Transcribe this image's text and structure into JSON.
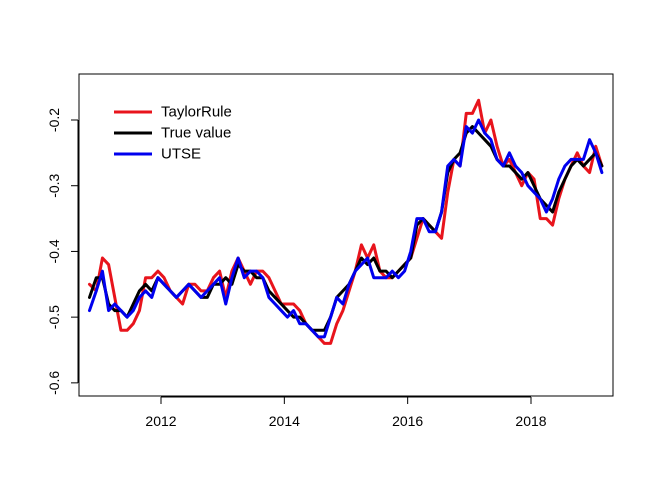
{
  "chart_data": {
    "type": "line",
    "title": "",
    "xlabel": "",
    "ylabel": "",
    "xlim": [
      2010.67,
      2019.33
    ],
    "ylim": [
      -0.62,
      -0.13
    ],
    "x_ticks": [
      2012,
      2014,
      2016,
      2018
    ],
    "y_ticks": [
      -0.6,
      -0.5,
      -0.4,
      -0.3,
      -0.2
    ],
    "y_tick_labels": [
      "-0.6",
      "-0.5",
      "-0.4",
      "-0.3",
      "-0.2"
    ],
    "legend_position": "top-left",
    "grid": false,
    "series": [
      {
        "name": "TaylorRule",
        "color": "#e8141c",
        "x": [
          2010.84,
          2010.95,
          2011.05,
          2011.15,
          2011.25,
          2011.35,
          2011.45,
          2011.55,
          2011.65,
          2011.75,
          2011.85,
          2011.95,
          2012.05,
          2012.15,
          2012.25,
          2012.35,
          2012.45,
          2012.55,
          2012.65,
          2012.75,
          2012.85,
          2012.95,
          2013.05,
          2013.15,
          2013.25,
          2013.35,
          2013.45,
          2013.55,
          2013.65,
          2013.75,
          2013.85,
          2013.95,
          2014.05,
          2014.15,
          2014.25,
          2014.35,
          2014.45,
          2014.55,
          2014.65,
          2014.75,
          2014.85,
          2014.95,
          2015.05,
          2015.15,
          2015.25,
          2015.35,
          2015.45,
          2015.55,
          2015.65,
          2015.75,
          2015.85,
          2015.95,
          2016.05,
          2016.15,
          2016.25,
          2016.35,
          2016.45,
          2016.55,
          2016.65,
          2016.75,
          2016.85,
          2016.95,
          2017.05,
          2017.15,
          2017.25,
          2017.35,
          2017.45,
          2017.55,
          2017.65,
          2017.75,
          2017.85,
          2017.95,
          2018.05,
          2018.15,
          2018.25,
          2018.35,
          2018.45,
          2018.55,
          2018.65,
          2018.75,
          2018.85,
          2018.95,
          2019.05,
          2019.15
        ],
        "y": [
          -0.45,
          -0.46,
          -0.41,
          -0.42,
          -0.47,
          -0.52,
          -0.52,
          -0.51,
          -0.49,
          -0.44,
          -0.44,
          -0.43,
          -0.44,
          -0.46,
          -0.47,
          -0.48,
          -0.45,
          -0.45,
          -0.46,
          -0.46,
          -0.44,
          -0.43,
          -0.47,
          -0.43,
          -0.41,
          -0.43,
          -0.45,
          -0.43,
          -0.43,
          -0.44,
          -0.46,
          -0.48,
          -0.48,
          -0.48,
          -0.49,
          -0.51,
          -0.52,
          -0.53,
          -0.54,
          -0.54,
          -0.51,
          -0.49,
          -0.46,
          -0.43,
          -0.39,
          -0.41,
          -0.39,
          -0.43,
          -0.44,
          -0.44,
          -0.43,
          -0.42,
          -0.41,
          -0.38,
          -0.35,
          -0.36,
          -0.37,
          -0.38,
          -0.31,
          -0.26,
          -0.27,
          -0.19,
          -0.19,
          -0.17,
          -0.22,
          -0.2,
          -0.24,
          -0.27,
          -0.26,
          -0.28,
          -0.3,
          -0.28,
          -0.29,
          -0.35,
          -0.35,
          -0.36,
          -0.32,
          -0.29,
          -0.27,
          -0.25,
          -0.27,
          -0.28,
          -0.24,
          -0.27
        ]
      },
      {
        "name": "True value",
        "color": "#000000",
        "x": [
          2010.84,
          2010.95,
          2011.05,
          2011.15,
          2011.25,
          2011.35,
          2011.45,
          2011.55,
          2011.65,
          2011.75,
          2011.85,
          2011.95,
          2012.05,
          2012.15,
          2012.25,
          2012.35,
          2012.45,
          2012.55,
          2012.65,
          2012.75,
          2012.85,
          2012.95,
          2013.05,
          2013.15,
          2013.25,
          2013.35,
          2013.45,
          2013.55,
          2013.65,
          2013.75,
          2013.85,
          2013.95,
          2014.05,
          2014.15,
          2014.25,
          2014.35,
          2014.45,
          2014.55,
          2014.65,
          2014.75,
          2014.85,
          2014.95,
          2015.05,
          2015.15,
          2015.25,
          2015.35,
          2015.45,
          2015.55,
          2015.65,
          2015.75,
          2015.85,
          2015.95,
          2016.05,
          2016.15,
          2016.25,
          2016.35,
          2016.45,
          2016.55,
          2016.65,
          2016.75,
          2016.85,
          2016.95,
          2017.05,
          2017.15,
          2017.25,
          2017.35,
          2017.45,
          2017.55,
          2017.65,
          2017.75,
          2017.85,
          2017.95,
          2018.05,
          2018.15,
          2018.25,
          2018.35,
          2018.45,
          2018.55,
          2018.65,
          2018.75,
          2018.85,
          2018.95,
          2019.05,
          2019.15
        ],
        "y": [
          -0.47,
          -0.44,
          -0.44,
          -0.48,
          -0.49,
          -0.49,
          -0.5,
          -0.48,
          -0.46,
          -0.45,
          -0.46,
          -0.44,
          -0.45,
          -0.46,
          -0.47,
          -0.46,
          -0.45,
          -0.46,
          -0.47,
          -0.47,
          -0.45,
          -0.45,
          -0.44,
          -0.45,
          -0.42,
          -0.43,
          -0.43,
          -0.44,
          -0.44,
          -0.46,
          -0.47,
          -0.48,
          -0.49,
          -0.5,
          -0.5,
          -0.51,
          -0.52,
          -0.52,
          -0.52,
          -0.5,
          -0.47,
          -0.46,
          -0.45,
          -0.43,
          -0.41,
          -0.42,
          -0.41,
          -0.43,
          -0.43,
          -0.44,
          -0.43,
          -0.42,
          -0.41,
          -0.36,
          -0.35,
          -0.36,
          -0.37,
          -0.34,
          -0.28,
          -0.26,
          -0.25,
          -0.22,
          -0.21,
          -0.22,
          -0.23,
          -0.24,
          -0.26,
          -0.27,
          -0.27,
          -0.28,
          -0.29,
          -0.28,
          -0.3,
          -0.32,
          -0.33,
          -0.34,
          -0.31,
          -0.29,
          -0.27,
          -0.26,
          -0.27,
          -0.26,
          -0.25,
          -0.27
        ]
      },
      {
        "name": "UTSE",
        "color": "#0000ee",
        "x": [
          2010.84,
          2010.95,
          2011.05,
          2011.15,
          2011.25,
          2011.35,
          2011.45,
          2011.55,
          2011.65,
          2011.75,
          2011.85,
          2011.95,
          2012.05,
          2012.15,
          2012.25,
          2012.35,
          2012.45,
          2012.55,
          2012.65,
          2012.75,
          2012.85,
          2012.95,
          2013.05,
          2013.15,
          2013.25,
          2013.35,
          2013.45,
          2013.55,
          2013.65,
          2013.75,
          2013.85,
          2013.95,
          2014.05,
          2014.15,
          2014.25,
          2014.35,
          2014.45,
          2014.55,
          2014.65,
          2014.75,
          2014.85,
          2014.95,
          2015.05,
          2015.15,
          2015.25,
          2015.35,
          2015.45,
          2015.55,
          2015.65,
          2015.75,
          2015.85,
          2015.95,
          2016.05,
          2016.15,
          2016.25,
          2016.35,
          2016.45,
          2016.55,
          2016.65,
          2016.75,
          2016.85,
          2016.95,
          2017.05,
          2017.15,
          2017.25,
          2017.35,
          2017.45,
          2017.55,
          2017.65,
          2017.75,
          2017.85,
          2017.95,
          2018.05,
          2018.15,
          2018.25,
          2018.35,
          2018.45,
          2018.55,
          2018.65,
          2018.75,
          2018.85,
          2018.95,
          2019.05,
          2019.15
        ],
        "y": [
          -0.49,
          -0.46,
          -0.43,
          -0.49,
          -0.48,
          -0.49,
          -0.5,
          -0.49,
          -0.47,
          -0.46,
          -0.47,
          -0.44,
          -0.45,
          -0.46,
          -0.47,
          -0.46,
          -0.45,
          -0.46,
          -0.47,
          -0.46,
          -0.45,
          -0.44,
          -0.48,
          -0.44,
          -0.41,
          -0.44,
          -0.43,
          -0.43,
          -0.44,
          -0.47,
          -0.48,
          -0.49,
          -0.5,
          -0.49,
          -0.51,
          -0.51,
          -0.52,
          -0.53,
          -0.53,
          -0.5,
          -0.47,
          -0.48,
          -0.45,
          -0.43,
          -0.42,
          -0.41,
          -0.44,
          -0.44,
          -0.44,
          -0.43,
          -0.44,
          -0.43,
          -0.4,
          -0.35,
          -0.35,
          -0.37,
          -0.37,
          -0.34,
          -0.27,
          -0.26,
          -0.27,
          -0.21,
          -0.22,
          -0.2,
          -0.22,
          -0.23,
          -0.26,
          -0.27,
          -0.25,
          -0.27,
          -0.28,
          -0.3,
          -0.31,
          -0.32,
          -0.34,
          -0.32,
          -0.29,
          -0.27,
          -0.26,
          -0.26,
          -0.26,
          -0.23,
          -0.25,
          -0.28
        ]
      }
    ]
  }
}
